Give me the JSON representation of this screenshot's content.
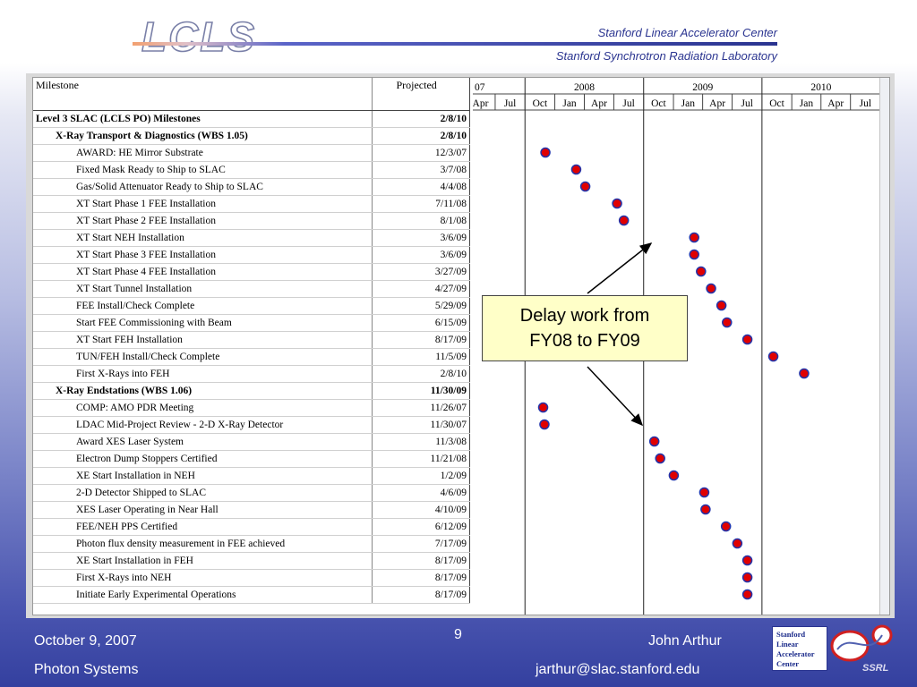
{
  "header": {
    "logo_text": "LCLS",
    "org_line_1": "Stanford Linear Accelerator Center",
    "org_line_2": "Stanford Synchrotron Radiation Laboratory"
  },
  "table": {
    "col_milestone": "Milestone",
    "col_projected": "Projected",
    "rows": [
      {
        "name": "Level 3 SLAC (LCLS PO) Milestones",
        "date": "2/8/10",
        "level": 0,
        "bold": true
      },
      {
        "name": "X-Ray Transport & Diagnostics  (WBS 1.05)",
        "date": "2/8/10",
        "level": 1,
        "bold": true
      },
      {
        "name": "AWARD: HE Mirror Substrate",
        "date": "12/3/07",
        "level": 2
      },
      {
        "name": "Fixed Mask Ready to Ship to SLAC",
        "date": "3/7/08",
        "level": 2
      },
      {
        "name": "Gas/Solid Attenuator Ready to Ship to SLAC",
        "date": "4/4/08",
        "level": 2
      },
      {
        "name": "XT Start Phase 1 FEE Installation",
        "date": "7/11/08",
        "level": 2
      },
      {
        "name": "XT Start Phase 2 FEE Installation",
        "date": "8/1/08",
        "level": 2
      },
      {
        "name": "XT Start NEH Installation",
        "date": "3/6/09",
        "level": 2
      },
      {
        "name": "XT Start Phase 3 FEE Installation",
        "date": "3/6/09",
        "level": 2
      },
      {
        "name": "XT Start Phase 4 FEE Installation",
        "date": "3/27/09",
        "level": 2
      },
      {
        "name": "XT Start Tunnel Installation",
        "date": "4/27/09",
        "level": 2
      },
      {
        "name": "FEE Install/Check Complete",
        "date": "5/29/09",
        "level": 2
      },
      {
        "name": "Start FEE Commissioning with Beam",
        "date": "6/15/09",
        "level": 2
      },
      {
        "name": "XT Start FEH Installation",
        "date": "8/17/09",
        "level": 2
      },
      {
        "name": "TUN/FEH Install/Check Complete",
        "date": "11/5/09",
        "level": 2
      },
      {
        "name": "First X-Rays into FEH",
        "date": "2/8/10",
        "level": 2
      },
      {
        "name": "X-Ray Endstations (WBS 1.06)",
        "date": "11/30/09",
        "level": 1,
        "bold": true
      },
      {
        "name": "COMP: AMO PDR Meeting",
        "date": "11/26/07",
        "level": 2
      },
      {
        "name": "LDAC Mid-Project Review - 2-D X-Ray Detector",
        "date": "11/30/07",
        "level": 2
      },
      {
        "name": "Award XES Laser System",
        "date": "11/3/08",
        "level": 2
      },
      {
        "name": "Electron Dump Stoppers Certified",
        "date": "11/21/08",
        "level": 2
      },
      {
        "name": "XE Start Installation in NEH",
        "date": "1/2/09",
        "level": 2
      },
      {
        "name": "2-D Detector Shipped to SLAC",
        "date": "4/6/09",
        "level": 2
      },
      {
        "name": "XES Laser Operating in Near Hall",
        "date": "4/10/09",
        "level": 2
      },
      {
        "name": "FEE/NEH PPS Certified",
        "date": "6/12/09",
        "level": 2
      },
      {
        "name": "Photon flux density measurement in FEE achieved",
        "date": "7/17/09",
        "level": 2
      },
      {
        "name": "XE Start Installation in FEH",
        "date": "8/17/09",
        "level": 2
      },
      {
        "name": "First X-Rays into NEH",
        "date": "8/17/09",
        "level": 2
      },
      {
        "name": "Initiate Early Experimental Operations",
        "date": "8/17/09",
        "level": 2
      }
    ]
  },
  "chart_data": {
    "type": "scatter",
    "years": [
      {
        "label": "07",
        "start": "2007-04-01"
      },
      {
        "label": "2008",
        "start": "2007-10-01"
      },
      {
        "label": "2009",
        "start": "2008-10-01"
      },
      {
        "label": "2010",
        "start": "2009-10-01"
      }
    ],
    "quarters": [
      {
        "label": "Apr",
        "start": "2007-04-01"
      },
      {
        "label": "Jul",
        "start": "2007-07-01"
      },
      {
        "label": "Oct",
        "start": "2007-10-01"
      },
      {
        "label": "Jan",
        "start": "2008-01-01"
      },
      {
        "label": "Apr",
        "start": "2008-04-01"
      },
      {
        "label": "Jul",
        "start": "2008-07-01"
      },
      {
        "label": "Oct",
        "start": "2008-10-01"
      },
      {
        "label": "Jan",
        "start": "2009-01-01"
      },
      {
        "label": "Apr",
        "start": "2009-04-01"
      },
      {
        "label": "Jul",
        "start": "2009-07-01"
      },
      {
        "label": "Oct",
        "start": "2009-10-01"
      },
      {
        "label": "Jan",
        "start": "2010-01-01"
      },
      {
        "label": "Apr",
        "start": "2010-04-01"
      },
      {
        "label": "Jul",
        "start": "2010-07-01"
      }
    ],
    "xlim": [
      "2007-04-01",
      "2010-10-01"
    ],
    "marker_color": "#e00000",
    "marker_edge": "#2233aa",
    "milestones": [
      {
        "row": 2,
        "date": "2007-12-03"
      },
      {
        "row": 3,
        "date": "2008-03-07"
      },
      {
        "row": 4,
        "date": "2008-04-04"
      },
      {
        "row": 5,
        "date": "2008-07-11"
      },
      {
        "row": 6,
        "date": "2008-08-01"
      },
      {
        "row": 7,
        "date": "2009-03-06"
      },
      {
        "row": 8,
        "date": "2009-03-06"
      },
      {
        "row": 9,
        "date": "2009-03-27"
      },
      {
        "row": 10,
        "date": "2009-04-27"
      },
      {
        "row": 11,
        "date": "2009-05-29"
      },
      {
        "row": 12,
        "date": "2009-06-15"
      },
      {
        "row": 13,
        "date": "2009-08-17"
      },
      {
        "row": 14,
        "date": "2009-11-05"
      },
      {
        "row": 15,
        "date": "2010-02-08"
      },
      {
        "row": 17,
        "date": "2007-11-26"
      },
      {
        "row": 18,
        "date": "2007-11-30"
      },
      {
        "row": 19,
        "date": "2008-11-03"
      },
      {
        "row": 20,
        "date": "2008-11-21"
      },
      {
        "row": 21,
        "date": "2009-01-02"
      },
      {
        "row": 22,
        "date": "2009-04-06"
      },
      {
        "row": 23,
        "date": "2009-04-10"
      },
      {
        "row": 24,
        "date": "2009-06-12"
      },
      {
        "row": 25,
        "date": "2009-07-17"
      },
      {
        "row": 26,
        "date": "2009-08-17"
      },
      {
        "row": 27,
        "date": "2009-08-17"
      },
      {
        "row": 28,
        "date": "2009-08-17"
      }
    ]
  },
  "callout": {
    "line1": "Delay work from",
    "line2": "FY08 to FY09"
  },
  "footer": {
    "date": "October 9, 2007",
    "page": "9",
    "author": "John Arthur",
    "group": "Photon Systems",
    "email": "jarthur@slac.stanford.edu",
    "badge_lines": [
      "Stanford",
      "Linear",
      "Accelerator",
      "Center"
    ],
    "ssrl_text": "SSRL"
  }
}
